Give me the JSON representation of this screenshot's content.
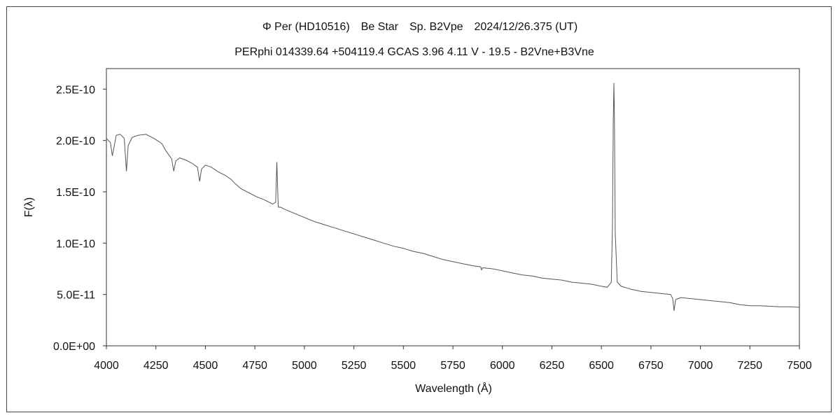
{
  "chart_data": {
    "type": "line",
    "title": "Φ Per (HD10516)　Be Star　Sp. B2Vpe　2024/12/26.375 (UT)",
    "subtitle": "PERphi 014339.64 +504119.4 GCAS 3.96 4.11 V - 19.5 - B2Vne+B3Vne",
    "xlabel": "Wavelength (Å)",
    "ylabel": "F(λ)",
    "xlim": [
      4000,
      7500
    ],
    "ylim": [
      0,
      2.7e-10
    ],
    "x_ticks": [
      4000,
      4250,
      4500,
      4750,
      5000,
      5250,
      5500,
      5750,
      6000,
      6250,
      6500,
      6750,
      7000,
      7250,
      7500
    ],
    "y_ticks": [
      0,
      5e-11,
      1e-10,
      1.5e-10,
      2e-10,
      2.5e-10
    ],
    "y_tick_labels": [
      "0.0E+00",
      "5.0E-11",
      "1.0E-10",
      "1.5E-10",
      "2.0E-10",
      "2.5E-10"
    ],
    "grid": false,
    "legend": "none",
    "line_color": "#555555",
    "series": [
      {
        "x": [
          4000,
          4020,
          4030,
          4040,
          4050,
          4070,
          4090,
          4101,
          4110,
          4130,
          4160,
          4200,
          4240,
          4280,
          4300,
          4330,
          4340,
          4350,
          4370,
          4400,
          4430,
          4460,
          4471,
          4480,
          4500,
          4530,
          4560,
          4600,
          4630,
          4650,
          4680,
          4720,
          4760,
          4800,
          4840,
          4855,
          4861,
          4868,
          4880,
          4900,
          4950,
          5000,
          5050,
          5100,
          5150,
          5200,
          5250,
          5300,
          5350,
          5400,
          5450,
          5500,
          5550,
          5600,
          5650,
          5700,
          5750,
          5800,
          5850,
          5890,
          5895,
          5900,
          5950,
          6000,
          6050,
          6100,
          6150,
          6200,
          6250,
          6300,
          6350,
          6400,
          6450,
          6500,
          6530,
          6550,
          6556,
          6560,
          6563,
          6566,
          6570,
          6580,
          6600,
          6650,
          6700,
          6750,
          6800,
          6850,
          6860,
          6867,
          6875,
          6900,
          6950,
          7000,
          7050,
          7100,
          7150,
          7200,
          7250,
          7300,
          7350,
          7400,
          7450,
          7500
        ],
        "y": [
          2.02e-10,
          1.98e-10,
          1.85e-10,
          1.95e-10,
          2.05e-10,
          2.06e-10,
          2.02e-10,
          1.7e-10,
          1.95e-10,
          2.03e-10,
          2.05e-10,
          2.06e-10,
          2.02e-10,
          1.97e-10,
          1.9e-10,
          1.82e-10,
          1.7e-10,
          1.8e-10,
          1.83e-10,
          1.81e-10,
          1.78e-10,
          1.74e-10,
          1.6e-10,
          1.72e-10,
          1.76e-10,
          1.74e-10,
          1.7e-10,
          1.66e-10,
          1.62e-10,
          1.58e-10,
          1.53e-10,
          1.49e-10,
          1.45e-10,
          1.42e-10,
          1.38e-10,
          1.4e-10,
          1.79e-10,
          1.35e-10,
          1.35e-10,
          1.33e-10,
          1.29e-10,
          1.25e-10,
          1.21e-10,
          1.18e-10,
          1.15e-10,
          1.12e-10,
          1.09e-10,
          1.06e-10,
          1.03e-10,
          1e-10,
          9.7e-11,
          9.5e-11,
          9.2e-11,
          9e-11,
          8.7e-11,
          8.4e-11,
          8.2e-11,
          8e-11,
          7.8e-11,
          7.7e-11,
          7.4e-11,
          7.6e-11,
          7.5e-11,
          7.3e-11,
          7.1e-11,
          6.9e-11,
          6.8e-11,
          6.6e-11,
          6.5e-11,
          6.4e-11,
          6.2e-11,
          6.1e-11,
          6e-11,
          5.8e-11,
          5.7e-11,
          6.2e-11,
          1.2e-10,
          2.2e-10,
          2.56e-10,
          2.2e-10,
          1.1e-10,
          6.2e-11,
          5.8e-11,
          5.5e-11,
          5.3e-11,
          5.2e-11,
          5.1e-11,
          5e-11,
          4.6e-11,
          3.4e-11,
          4.5e-11,
          4.7e-11,
          4.6e-11,
          4.5e-11,
          4.4e-11,
          4.3e-11,
          4.2e-11,
          4e-11,
          3.9e-11,
          3.9e-11,
          3.85e-11,
          3.8e-11,
          3.8e-11,
          3.75e-11
        ]
      }
    ]
  }
}
